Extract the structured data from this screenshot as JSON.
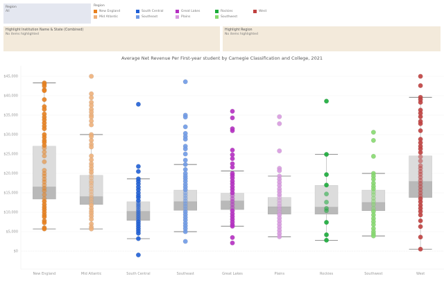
{
  "filter": {
    "title": "Region",
    "value": "All"
  },
  "legend": {
    "title": "Region",
    "items": [
      {
        "label": "New England",
        "color": "#e8811f"
      },
      {
        "label": "Mid Atlantic",
        "color": "#eeb07a"
      },
      {
        "label": "South Central",
        "color": "#1f5fd6"
      },
      {
        "label": "Southeast",
        "color": "#6f9ae6"
      },
      {
        "label": "Great Lakes",
        "color": "#b52ec2"
      },
      {
        "label": "Plains",
        "color": "#d89ae0"
      },
      {
        "label": "Rockies",
        "color": "#1aab3a"
      },
      {
        "label": "Southwest",
        "color": "#86d96f"
      },
      {
        "label": "West",
        "color": "#c0403f"
      }
    ]
  },
  "highlight_institution": {
    "title": "Highlight Institution Name & State (Combined)",
    "value": "No items highlighted"
  },
  "highlight_region": {
    "title": "Highlight Region",
    "value": "No items highlighted"
  },
  "chart_data": {
    "type": "scatter",
    "subtype": "box-and-whisker with jittered points",
    "title": "Average Net Revenue Per First-year student by Carnegie Classification and College, 2021",
    "xlabel": "",
    "ylabel": "",
    "ylim": [
      -3000,
      47000
    ],
    "yticks": [
      0,
      5000,
      10000,
      15000,
      20000,
      25000,
      30000,
      35000,
      40000,
      45000
    ],
    "ytick_labels": [
      "$0",
      "$5,000",
      "$10,000",
      "$15,000",
      "$20,000",
      "$25,000",
      "$30,000",
      "$35,000",
      "$40,000",
      "$45,000"
    ],
    "grid": true,
    "categories": [
      "New England",
      "Mid Atlantic",
      "South Central",
      "Southeast",
      "Great Lakes",
      "Plains",
      "Rockies",
      "Southwest",
      "West"
    ],
    "series": [
      {
        "name": "New England",
        "color": "#e8811f",
        "box": {
          "whisker_low": 5700,
          "q1": 13400,
          "median": 16500,
          "q3": 27000,
          "whisker_high": 43300
        },
        "values": [
          43300,
          43000,
          42500,
          41500,
          41300,
          39000,
          37200,
          36500,
          35300,
          34500,
          33800,
          33000,
          32200,
          31500,
          30000,
          29300,
          28500,
          28000,
          27200,
          26500,
          25500,
          24500,
          23000,
          20800,
          20000,
          19300,
          18500,
          17800,
          17000,
          16200,
          15500,
          14500,
          13500,
          12800,
          12000,
          11300,
          10700,
          10000,
          9300,
          8800,
          7800,
          7300,
          6000,
          5700
        ]
      },
      {
        "name": "Mid Atlantic",
        "color": "#eeb07a",
        "box": {
          "whisker_low": 5700,
          "q1": 12000,
          "median": 14000,
          "q3": 19500,
          "whisker_high": 30000
        },
        "values": [
          45000,
          40500,
          39500,
          38300,
          37500,
          36500,
          35800,
          35000,
          34500,
          33500,
          32500,
          30000,
          29500,
          28500,
          27500,
          26800,
          24500,
          23500,
          22500,
          21800,
          21000,
          20300,
          19500,
          18800,
          18000,
          17500,
          16800,
          16000,
          15300,
          14500,
          13800,
          13200,
          12500,
          11800,
          11000,
          10300,
          9700,
          9000,
          8200,
          7000,
          6200,
          5700
        ]
      },
      {
        "name": "South Central",
        "color": "#1f5fd6",
        "box": {
          "whisker_low": 3200,
          "q1": 7900,
          "median": 10200,
          "q3": 12700,
          "whisker_high": 18600
        },
        "values": [
          37800,
          21800,
          20500,
          18600,
          18000,
          17300,
          16500,
          15800,
          15000,
          14300,
          13800,
          13000,
          12300,
          11800,
          11300,
          10700,
          10200,
          9700,
          9200,
          8700,
          8200,
          7600,
          7000,
          6400,
          5800,
          5200,
          4600,
          3200,
          -1000
        ]
      },
      {
        "name": "Southeast",
        "color": "#6f9ae6",
        "box": {
          "whisker_low": 5000,
          "q1": 10500,
          "median": 12700,
          "q3": 15700,
          "whisker_high": 22300
        },
        "values": [
          43600,
          35000,
          34500,
          32000,
          30300,
          29500,
          28800,
          27000,
          26300,
          25000,
          23400,
          22300,
          21000,
          20000,
          19300,
          18700,
          18000,
          17200,
          16500,
          15800,
          15000,
          14300,
          13600,
          12900,
          12200,
          11500,
          10800,
          10100,
          9400,
          8700,
          8000,
          7200,
          6500,
          5800,
          5000,
          2500
        ]
      },
      {
        "name": "Great Lakes",
        "color": "#b52ec2",
        "box": {
          "whisker_low": 6400,
          "q1": 10700,
          "median": 12900,
          "q3": 14900,
          "whisker_high": 20600
        },
        "values": [
          36000,
          34300,
          31500,
          31000,
          26000,
          24800,
          23800,
          22500,
          21600,
          20000,
          19500,
          18800,
          18000,
          17300,
          16500,
          15800,
          15000,
          14300,
          13500,
          12800,
          12000,
          11200,
          10400,
          9600,
          8900,
          8200,
          7500,
          6800,
          6400,
          3500,
          2100
        ]
      },
      {
        "name": "Plains",
        "color": "#d89ae0",
        "box": {
          "whisker_low": 3700,
          "q1": 9500,
          "median": 11400,
          "q3": 13800,
          "whisker_high": 19300
        },
        "values": [
          34600,
          32800,
          25800,
          21300,
          20700,
          19300,
          18500,
          17700,
          16900,
          16000,
          15300,
          14500,
          13800,
          13000,
          12200,
          11500,
          10800,
          10000,
          9300,
          8500,
          7700,
          6900,
          6100,
          5300,
          4500,
          3700
        ]
      },
      {
        "name": "Rockies",
        "color": "#1aab3a",
        "box": {
          "whisker_low": 2800,
          "q1": 9500,
          "median": 11300,
          "q3": 16900,
          "whisker_high": 24900
        },
        "values": [
          38600,
          24900,
          19700,
          17000,
          14700,
          12600,
          11000,
          10400,
          7400,
          4200,
          2800
        ]
      },
      {
        "name": "Southwest",
        "color": "#86d96f",
        "box": {
          "whisker_low": 3900,
          "q1": 10400,
          "median": 12500,
          "q3": 15700,
          "whisker_high": 20000
        },
        "values": [
          30600,
          28500,
          24400,
          20000,
          19300,
          18500,
          17500,
          16700,
          16000,
          15200,
          14500,
          13600,
          12800,
          12000,
          11000,
          10200,
          9300,
          8400,
          7600,
          6800,
          5800,
          5000,
          4400,
          3900
        ]
      },
      {
        "name": "West",
        "color": "#c0403f",
        "box": {
          "whisker_low": 500,
          "q1": 13800,
          "median": 17900,
          "q3": 24500,
          "whisker_high": 39600
        },
        "values": [
          45000,
          42600,
          39600,
          39000,
          38300,
          36300,
          35500,
          34600,
          33400,
          32800,
          31000,
          28800,
          27900,
          27000,
          26300,
          25400,
          24300,
          23200,
          22000,
          21300,
          20500,
          19800,
          19000,
          18200,
          17400,
          16600,
          15800,
          15000,
          14200,
          13500,
          12700,
          11800,
          11000,
          10200,
          9300,
          7800,
          6300,
          3600,
          500
        ]
      }
    ]
  }
}
